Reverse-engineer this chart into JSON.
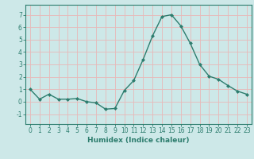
{
  "x": [
    0,
    1,
    2,
    3,
    4,
    5,
    6,
    7,
    8,
    9,
    10,
    11,
    12,
    13,
    14,
    15,
    16,
    17,
    18,
    19,
    20,
    21,
    22,
    23
  ],
  "y": [
    1.0,
    0.2,
    0.6,
    0.2,
    0.2,
    0.25,
    0.0,
    -0.1,
    -0.6,
    -0.55,
    0.9,
    1.7,
    3.4,
    5.3,
    6.85,
    7.0,
    6.1,
    4.7,
    3.0,
    2.05,
    1.8,
    1.3,
    0.85,
    0.6
  ],
  "line_color": "#2d7d6e",
  "marker": "D",
  "marker_size": 2.0,
  "linewidth": 1.0,
  "background_color": "#cde8e8",
  "grid_color": "#e8b8b8",
  "xlabel": "Humidex (Indice chaleur)",
  "xlabel_fontsize": 6.5,
  "xlim": [
    -0.5,
    23.5
  ],
  "ylim": [
    -1.8,
    7.8
  ],
  "yticks": [
    -1,
    0,
    1,
    2,
    3,
    4,
    5,
    6,
    7
  ],
  "xticks": [
    0,
    1,
    2,
    3,
    4,
    5,
    6,
    7,
    8,
    9,
    10,
    11,
    12,
    13,
    14,
    15,
    16,
    17,
    18,
    19,
    20,
    21,
    22,
    23
  ],
  "tick_fontsize": 5.5,
  "spine_color": "#2d7d6e",
  "text_color": "#2d7d6e"
}
